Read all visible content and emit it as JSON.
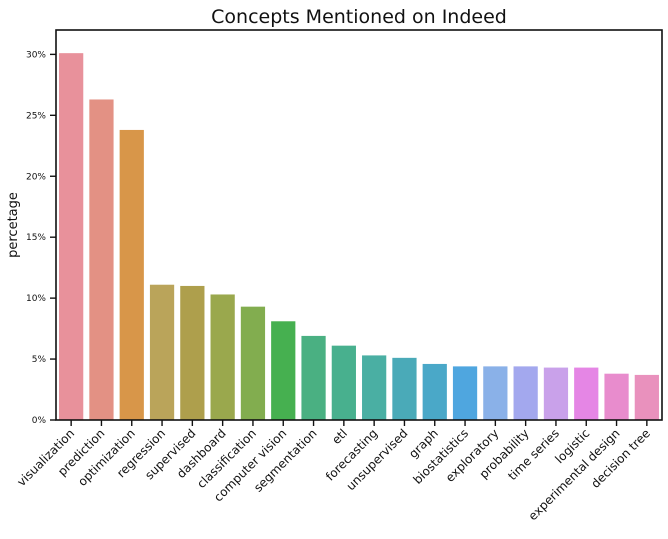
{
  "chart_data": {
    "type": "bar",
    "title": "Concepts Mentioned on Indeed",
    "xlabel": "",
    "ylabel": "percetage",
    "ylim": [
      0,
      32
    ],
    "yticks": [
      0,
      5,
      10,
      15,
      20,
      25,
      30
    ],
    "ytick_labels": [
      "0%",
      "5%",
      "10%",
      "15%",
      "20%",
      "25%",
      "30%"
    ],
    "grid": false,
    "categories": [
      "visualization",
      "prediction",
      "optimization",
      "regression",
      "supervised",
      "dashboard",
      "classification",
      "computer vision",
      "segmentation",
      "etl",
      "forecasting",
      "unsupervised",
      "graph",
      "biostatistics",
      "exploratory",
      "probability",
      "time series",
      "logistic",
      "experimental design",
      "decision tree"
    ],
    "values": [
      30.1,
      26.3,
      23.8,
      11.1,
      11.0,
      10.3,
      9.3,
      8.1,
      6.9,
      6.1,
      5.3,
      5.1,
      4.6,
      4.4,
      4.4,
      4.4,
      4.3,
      4.3,
      3.8,
      3.7
    ],
    "colors": [
      "#e8919b",
      "#e39184",
      "#d89649",
      "#baa45a",
      "#ae9f4c",
      "#9aa84d",
      "#82ad4f",
      "#46b050",
      "#4ab082",
      "#48b08e",
      "#4aafa3",
      "#4aaab8",
      "#4aa8c8",
      "#4fa6df",
      "#8ab1e8",
      "#a3a8ee",
      "#c9a1ea",
      "#e586e5",
      "#e88ccd",
      "#e991bd"
    ]
  }
}
